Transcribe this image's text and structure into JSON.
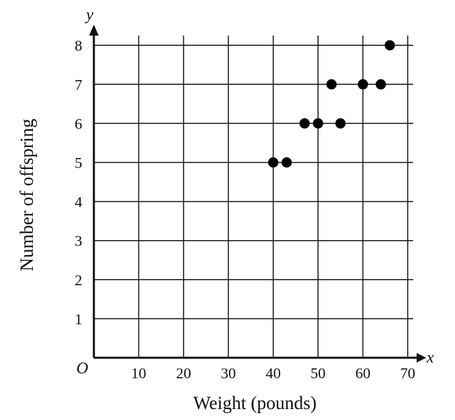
{
  "chart_data": {
    "type": "scatter",
    "xlabel": "Weight (pounds)",
    "ylabel": "Number of offspring",
    "x_axis_var": "x",
    "y_axis_var": "y",
    "origin_label": "O",
    "xlim": [
      0,
      70
    ],
    "ylim": [
      0,
      8
    ],
    "x_ticks": [
      10,
      20,
      30,
      40,
      50,
      60,
      70
    ],
    "y_ticks": [
      1,
      2,
      3,
      4,
      5,
      6,
      7,
      8
    ],
    "grid": true,
    "point_color": "#000000",
    "points": [
      {
        "x": 40,
        "y": 5
      },
      {
        "x": 43,
        "y": 5
      },
      {
        "x": 47,
        "y": 6
      },
      {
        "x": 50,
        "y": 6
      },
      {
        "x": 53,
        "y": 7
      },
      {
        "x": 55,
        "y": 6
      },
      {
        "x": 60,
        "y": 7
      },
      {
        "x": 64,
        "y": 7
      },
      {
        "x": 66,
        "y": 8
      }
    ]
  }
}
